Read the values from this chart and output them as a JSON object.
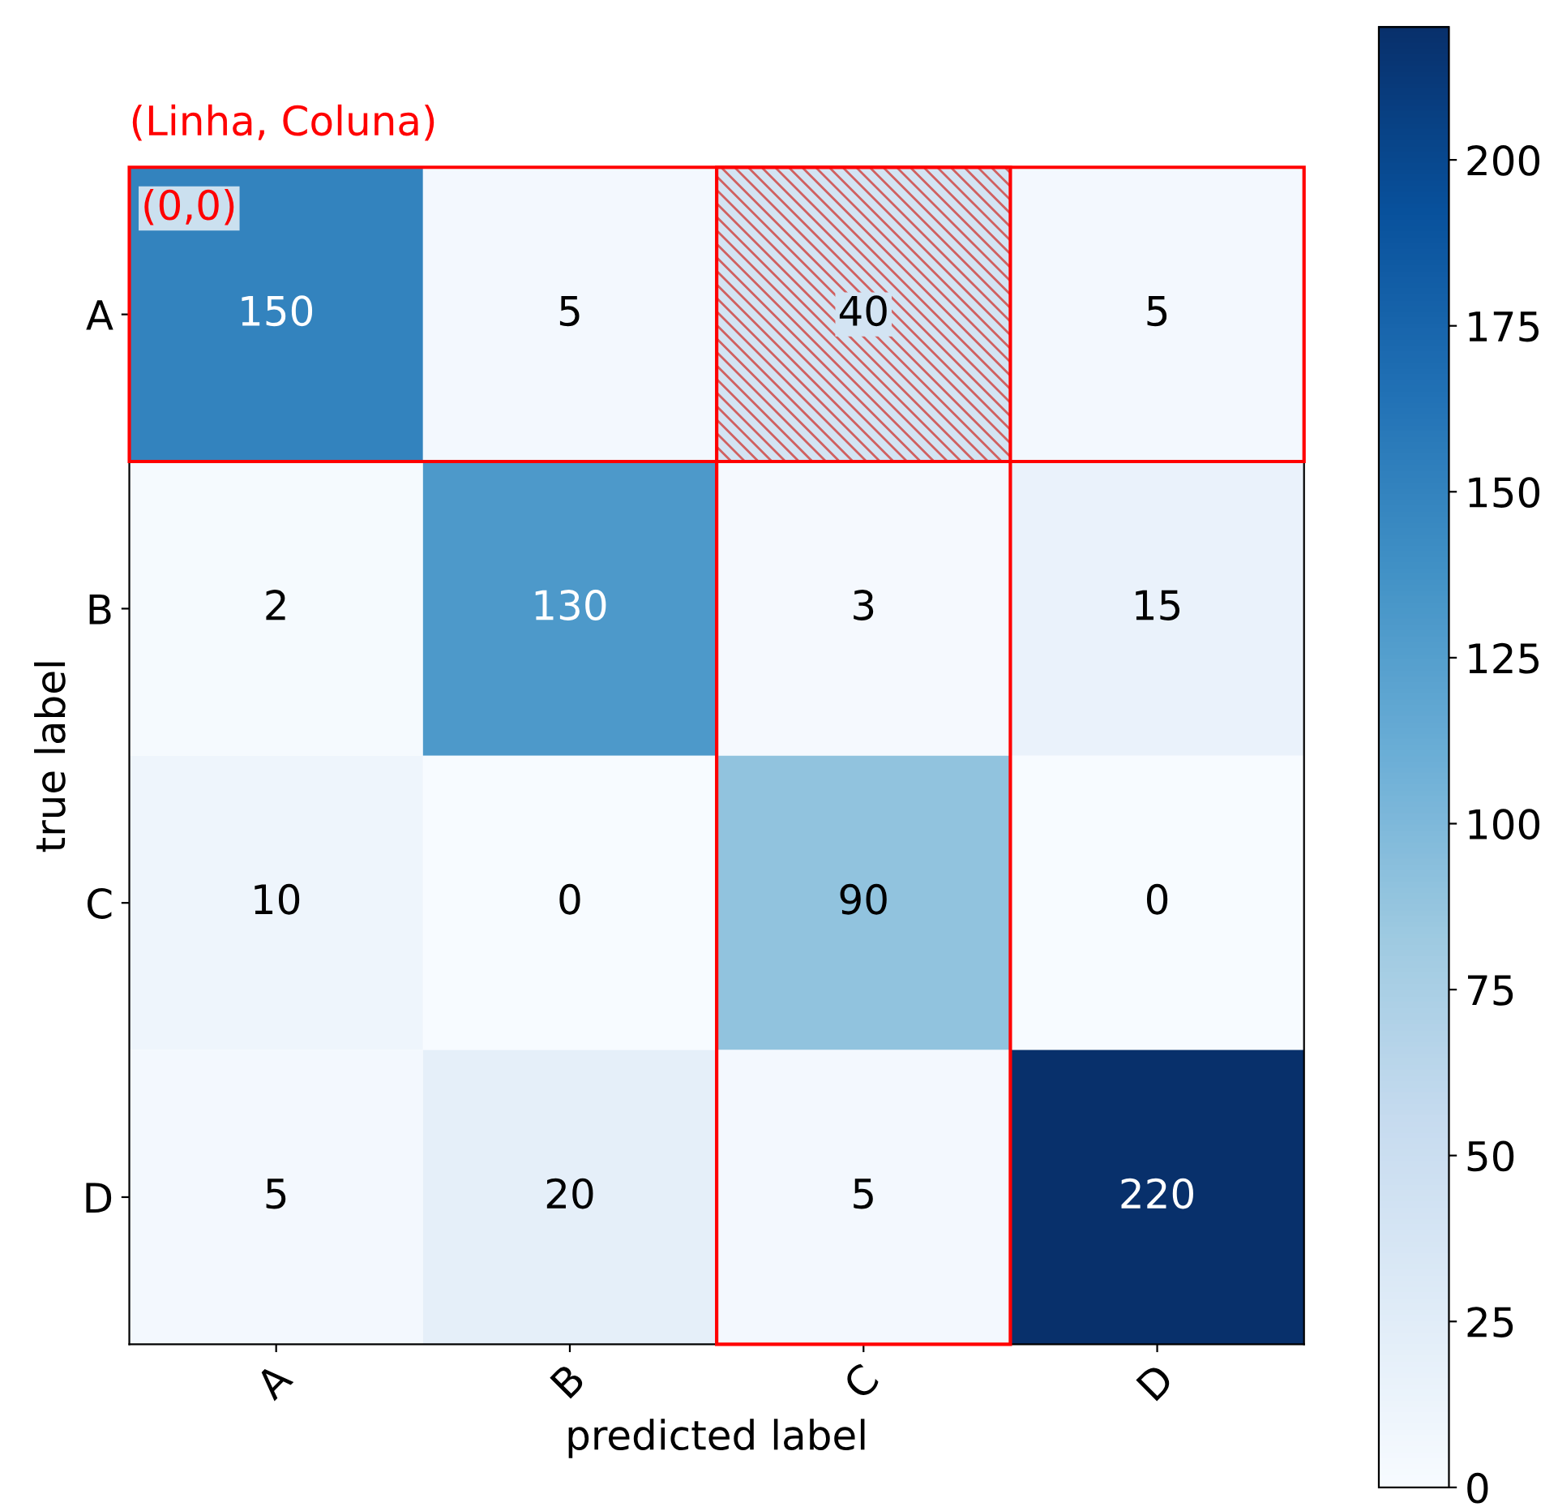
{
  "chart_data": {
    "type": "heatmap",
    "xlabel": "predicted label",
    "ylabel": "true label",
    "categories": [
      "A",
      "B",
      "C",
      "D"
    ],
    "y_categories": [
      "A",
      "B",
      "C",
      "D"
    ],
    "cells": [
      [
        150,
        5,
        40,
        5
      ],
      [
        2,
        130,
        3,
        15
      ],
      [
        10,
        0,
        90,
        0
      ],
      [
        5,
        20,
        5,
        220
      ]
    ],
    "data_labels": true,
    "clim": [
      0,
      220
    ],
    "cticks": [
      0,
      25,
      50,
      75,
      100,
      125,
      150,
      175,
      200
    ],
    "annotations": [
      "(Linha, Coluna)",
      "(0,0)"
    ]
  }
}
